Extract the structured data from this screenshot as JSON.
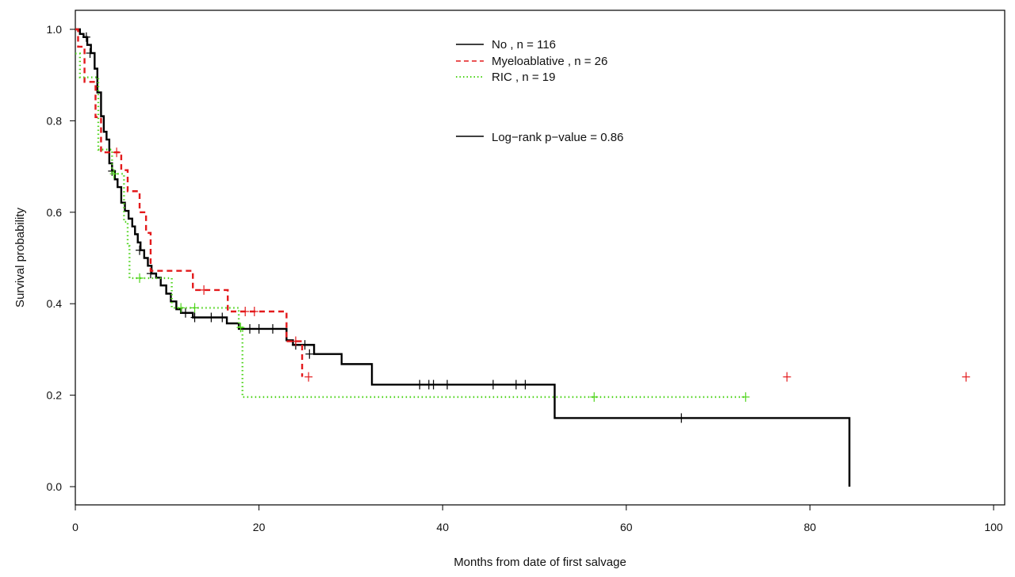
{
  "chart_data": {
    "type": "line",
    "subtype": "kaplan-meier",
    "title": "",
    "xlabel": "Months from date of first salvage",
    "ylabel": "Survival probability",
    "xlim": [
      0,
      100
    ],
    "ylim": [
      0,
      1.0
    ],
    "x_ticks": [
      0,
      20,
      40,
      60,
      80,
      100
    ],
    "y_ticks": [
      0.0,
      0.2,
      0.4,
      0.6,
      0.8,
      1.0
    ],
    "x_tick_labels": [
      "0",
      "20",
      "40",
      "60",
      "80",
      "100"
    ],
    "y_tick_labels": [
      "0.0",
      "0.2",
      "0.4",
      "0.6",
      "0.8",
      "1.0"
    ],
    "legend": {
      "position": "top-center",
      "entries": [
        "No , n =  116",
        "Myeloablative , n =  26",
        "RIC , n =  19"
      ],
      "annotation": "Log−rank p−value =  0.86"
    },
    "series": [
      {
        "name": "No",
        "color": "#000000",
        "dash": "solid",
        "steps": [
          [
            0,
            1.0
          ],
          [
            0.5,
            0.99
          ],
          [
            0.9,
            0.983
          ],
          [
            1.3,
            0.966
          ],
          [
            1.7,
            0.948
          ],
          [
            2.1,
            0.914
          ],
          [
            2.4,
            0.862
          ],
          [
            2.8,
            0.81
          ],
          [
            3.1,
            0.776
          ],
          [
            3.4,
            0.759
          ],
          [
            3.7,
            0.707
          ],
          [
            4.0,
            0.69
          ],
          [
            4.3,
            0.672
          ],
          [
            4.6,
            0.655
          ],
          [
            5.0,
            0.621
          ],
          [
            5.4,
            0.603
          ],
          [
            5.8,
            0.586
          ],
          [
            6.2,
            0.569
          ],
          [
            6.5,
            0.552
          ],
          [
            6.8,
            0.534
          ],
          [
            7.1,
            0.517
          ],
          [
            7.5,
            0.5
          ],
          [
            7.9,
            0.483
          ],
          [
            8.3,
            0.466
          ],
          [
            8.8,
            0.457
          ],
          [
            9.3,
            0.44
          ],
          [
            9.9,
            0.422
          ],
          [
            10.4,
            0.405
          ],
          [
            11.0,
            0.388
          ],
          [
            11.5,
            0.38
          ],
          [
            12.8,
            0.37
          ],
          [
            16.5,
            0.357
          ],
          [
            17.8,
            0.345
          ],
          [
            23.0,
            0.32
          ],
          [
            23.7,
            0.31
          ],
          [
            26.0,
            0.29
          ],
          [
            29.0,
            0.268
          ],
          [
            32.3,
            0.223
          ],
          [
            52.2,
            0.15
          ],
          [
            84.3,
            0.0
          ]
        ],
        "censor": [
          [
            1.2,
            0.983
          ],
          [
            1.6,
            0.948
          ],
          [
            4.0,
            0.69
          ],
          [
            7.0,
            0.517
          ],
          [
            8.2,
            0.466
          ],
          [
            12.0,
            0.38
          ],
          [
            13.0,
            0.37
          ],
          [
            14.8,
            0.37
          ],
          [
            16.0,
            0.37
          ],
          [
            19.0,
            0.345
          ],
          [
            20.0,
            0.345
          ],
          [
            21.5,
            0.345
          ],
          [
            24.0,
            0.31
          ],
          [
            25.0,
            0.31
          ],
          [
            25.5,
            0.29
          ],
          [
            37.5,
            0.223
          ],
          [
            38.5,
            0.223
          ],
          [
            39.0,
            0.223
          ],
          [
            40.5,
            0.223
          ],
          [
            45.5,
            0.223
          ],
          [
            48.0,
            0.223
          ],
          [
            49.0,
            0.223
          ],
          [
            66.0,
            0.15
          ]
        ]
      },
      {
        "name": "Myeloablative",
        "color": "#e31a1c",
        "dash": "dashed",
        "steps": [
          [
            0,
            1.0
          ],
          [
            0.3,
            0.962
          ],
          [
            1.0,
            0.885
          ],
          [
            2.2,
            0.808
          ],
          [
            2.8,
            0.731
          ],
          [
            5.0,
            0.692
          ],
          [
            5.7,
            0.646
          ],
          [
            7.0,
            0.6
          ],
          [
            7.7,
            0.555
          ],
          [
            8.2,
            0.472
          ],
          [
            12.8,
            0.43
          ],
          [
            16.6,
            0.383
          ],
          [
            23.0,
            0.318
          ],
          [
            24.7,
            0.24
          ]
        ],
        "censor": [
          [
            4.5,
            0.731
          ],
          [
            14.0,
            0.43
          ],
          [
            18.5,
            0.383
          ],
          [
            19.5,
            0.383
          ],
          [
            24.0,
            0.318
          ],
          [
            25.4,
            0.24
          ],
          [
            77.5,
            0.24
          ],
          [
            97.0,
            0.24
          ]
        ]
      },
      {
        "name": "RIC",
        "color": "#4fd41c",
        "dash": "dotted",
        "steps": [
          [
            0,
            0.947
          ],
          [
            0.5,
            0.895
          ],
          [
            2.5,
            0.737
          ],
          [
            4.0,
            0.684
          ],
          [
            5.3,
            0.579
          ],
          [
            5.7,
            0.526
          ],
          [
            5.9,
            0.456
          ],
          [
            10.5,
            0.391
          ],
          [
            17.8,
            0.348
          ],
          [
            18.2,
            0.196
          ]
        ],
        "end_x": 73.0,
        "censor": [
          [
            4.2,
            0.684
          ],
          [
            7.0,
            0.456
          ],
          [
            11.5,
            0.391
          ],
          [
            13.0,
            0.391
          ],
          [
            18.0,
            0.348
          ],
          [
            56.5,
            0.196
          ],
          [
            73.0,
            0.196
          ]
        ]
      }
    ]
  }
}
